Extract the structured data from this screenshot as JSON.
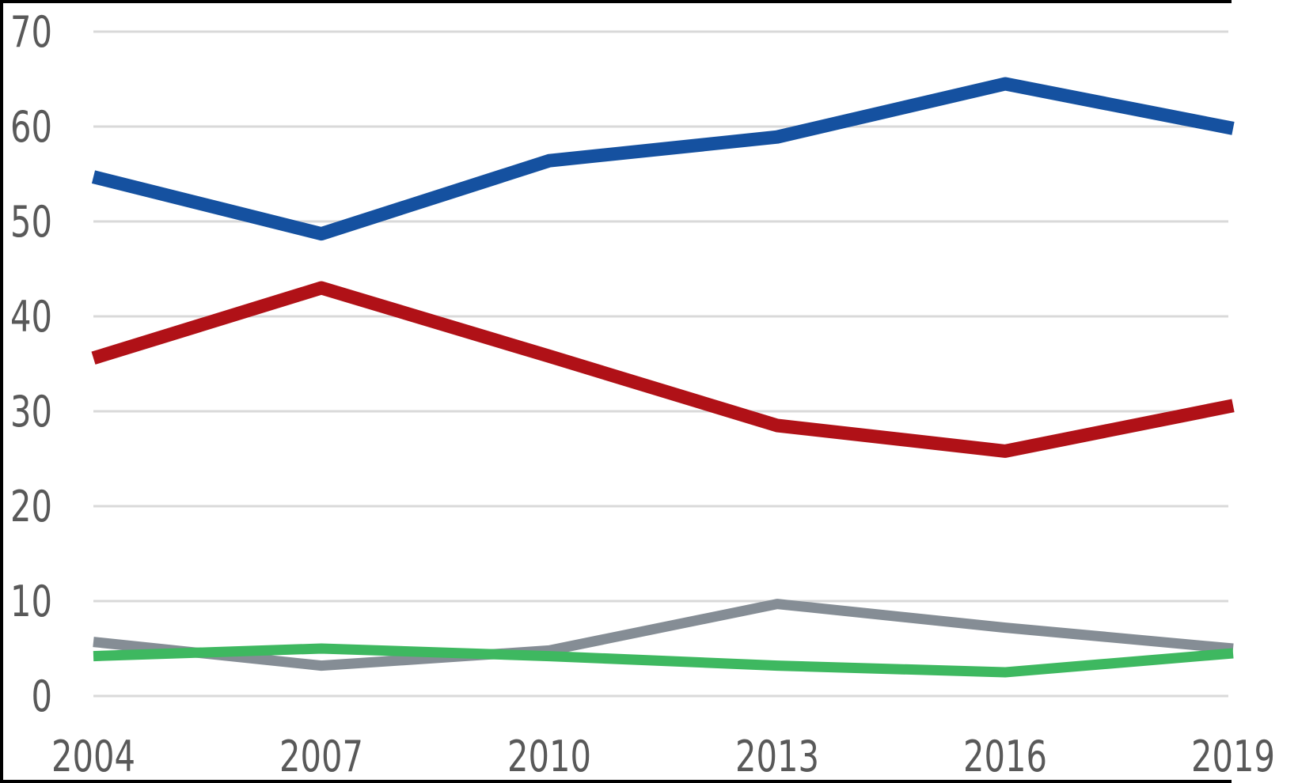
{
  "chart_data": {
    "type": "line",
    "x": [
      "2004",
      "2007",
      "2010",
      "2013",
      "2016",
      "2019"
    ],
    "series": [
      {
        "name": "blue",
        "color": "#1551A0",
        "values": [
          54.7,
          48.7,
          56.4,
          58.9,
          64.5,
          59.8
        ]
      },
      {
        "name": "red",
        "color": "#B01117",
        "values": [
          35.6,
          43.0,
          35.8,
          28.5,
          25.8,
          30.6
        ]
      },
      {
        "name": "gray",
        "color": "#858D95",
        "values": [
          5.7,
          3.2,
          4.8,
          9.7,
          7.2,
          5.0
        ]
      },
      {
        "name": "green",
        "color": "#3EB860",
        "values": [
          4.2,
          5.0,
          4.2,
          3.2,
          2.5,
          4.5
        ]
      }
    ],
    "title": "",
    "xlabel": "",
    "ylabel": "",
    "ylim": [
      0,
      70
    ],
    "yticks": [
      "0",
      "10",
      "20",
      "30",
      "40",
      "50",
      "60",
      "70"
    ],
    "grid": "horizontal",
    "legend": "none",
    "gridline_color": "#D9D9D9",
    "tick_label_color": "#595959",
    "frame_color": "#000000"
  }
}
